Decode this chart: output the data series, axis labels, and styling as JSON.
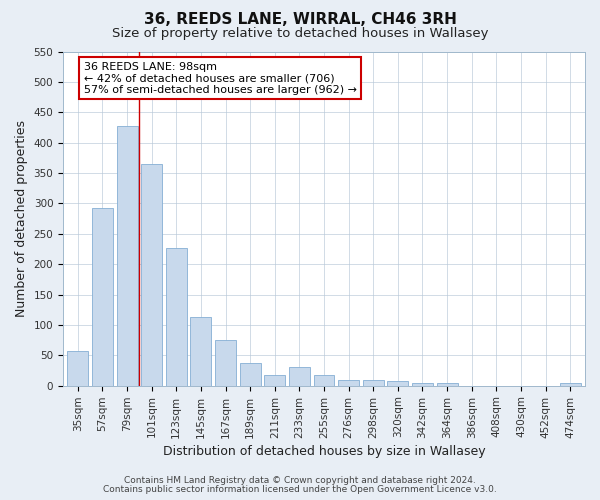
{
  "title": "36, REEDS LANE, WIRRAL, CH46 3RH",
  "subtitle": "Size of property relative to detached houses in Wallasey",
  "xlabel": "Distribution of detached houses by size in Wallasey",
  "ylabel": "Number of detached properties",
  "bar_labels": [
    "35sqm",
    "57sqm",
    "79sqm",
    "101sqm",
    "123sqm",
    "145sqm",
    "167sqm",
    "189sqm",
    "211sqm",
    "233sqm",
    "255sqm",
    "276sqm",
    "298sqm",
    "320sqm",
    "342sqm",
    "364sqm",
    "386sqm",
    "408sqm",
    "430sqm",
    "452sqm",
    "474sqm"
  ],
  "bar_values": [
    57,
    293,
    428,
    365,
    226,
    113,
    76,
    38,
    18,
    30,
    18,
    10,
    10,
    7,
    5,
    4,
    0,
    0,
    0,
    0,
    5
  ],
  "bar_color": "#c8d9ec",
  "bar_edge_color": "#85afd4",
  "vline_x": 2.5,
  "vline_color": "#cc0000",
  "annotation_text": "36 REEDS LANE: 98sqm\n← 42% of detached houses are smaller (706)\n57% of semi-detached houses are larger (962) →",
  "annotation_box_color": "#ffffff",
  "annotation_box_edge": "#cc0000",
  "ylim": [
    0,
    550
  ],
  "yticks": [
    0,
    50,
    100,
    150,
    200,
    250,
    300,
    350,
    400,
    450,
    500,
    550
  ],
  "footnote1": "Contains HM Land Registry data © Crown copyright and database right 2024.",
  "footnote2": "Contains public sector information licensed under the Open Government Licence v3.0.",
  "bg_color": "#e8eef5",
  "plot_bg_color": "#ffffff",
  "title_fontsize": 11,
  "subtitle_fontsize": 9.5,
  "axis_label_fontsize": 9,
  "tick_fontsize": 7.5,
  "annotation_fontsize": 8,
  "footnote_fontsize": 6.5
}
